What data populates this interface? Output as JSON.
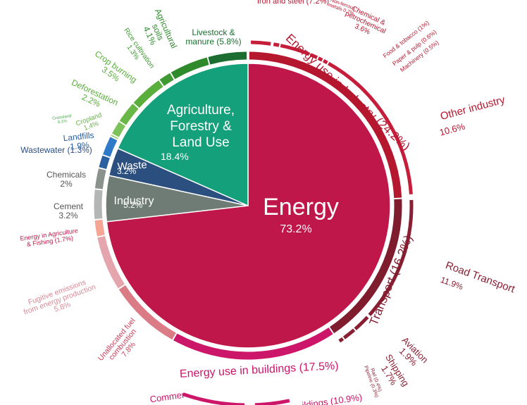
{
  "chart_data": {
    "type": "pie",
    "title": "",
    "sectors": [
      {
        "label": "Energy",
        "value": 73.2,
        "display": "73.2%",
        "color": "#c0174a"
      },
      {
        "label": "Industry",
        "value": 5.2,
        "display": "5.2%",
        "color": "#6f7c76"
      },
      {
        "label": "Waste",
        "value": 3.2,
        "display": "3.2%",
        "color": "#2b4f7e"
      },
      {
        "label": "Agriculture, Forestry & Land Use",
        "value": 18.4,
        "display": "18.4%",
        "color": "#13a07a"
      }
    ],
    "energy_subsectors": [
      {
        "label": "Energy use in Industry",
        "value": 24.2,
        "display": "(24.2%)",
        "color": "#b5172f"
      },
      {
        "label": "Transport",
        "value": 16.2,
        "display": "(16.2%)",
        "color": "#7f1c2e"
      },
      {
        "label": "Energy use in buildings",
        "value": 17.5,
        "display": "(17.5%)",
        "color": "#cc1669"
      },
      {
        "label": "Unallocated fuel combustion",
        "value": 7.8,
        "display": "7.8%",
        "color": "#db7b85"
      },
      {
        "label": "Fugitive emissions from energy production",
        "value": 5.8,
        "display": "5.8%",
        "color": "#e4a5ad"
      },
      {
        "label": "Energy in Agriculture & Fishing",
        "value": 1.7,
        "display": "(1.7%)",
        "color": "#f4a593"
      }
    ],
    "detail_labels": [
      {
        "label": "Iron and steel",
        "value": 7.2,
        "display": "(7.2%)"
      },
      {
        "label": "Non-ferrous metals",
        "value": 0.7,
        "display": "0.7%"
      },
      {
        "label": "Chemical & petrochemical",
        "value": 3.6,
        "display": "3.6%"
      },
      {
        "label": "Food & tobacco",
        "value": 1,
        "display": "(1%)"
      },
      {
        "label": "Paper & pulp",
        "value": 0.6,
        "display": "(0.6%)"
      },
      {
        "label": "Machinery",
        "value": 0.5,
        "display": "(0.5%)"
      },
      {
        "label": "Other industry",
        "value": 10.6,
        "display": "10.6%"
      },
      {
        "label": "Road Transport",
        "value": 11.9,
        "display": "11.9%"
      },
      {
        "label": "Aviation",
        "value": 1.9,
        "display": "1.9%"
      },
      {
        "label": "Shipping",
        "value": 1.7,
        "display": "1.7%"
      },
      {
        "label": "Rail",
        "value": 0.4,
        "display": "(0.4%)"
      },
      {
        "label": "Pipeline",
        "value": 0.3,
        "display": "(0.3%)"
      },
      {
        "label": "Commercial",
        "value": null,
        "display": "Commer"
      },
      {
        "label": "Residential buildings",
        "value": 10.9,
        "display": "ildings (10.9%)"
      },
      {
        "label": "Cement",
        "value": 3.2,
        "display": "3.2%"
      },
      {
        "label": "Chemicals",
        "value": 2,
        "display": "2%"
      },
      {
        "label": "Wastewater",
        "value": 1.3,
        "display": "(1.3%)"
      },
      {
        "label": "Landfills",
        "value": 1.9,
        "display": "1.9%"
      },
      {
        "label": "Grassland",
        "value": 0.1,
        "display": "0.1%"
      },
      {
        "label": "Cropland",
        "value": 1.4,
        "display": "1.4%"
      },
      {
        "label": "Deforestation",
        "value": 2.2,
        "display": "2.2%"
      },
      {
        "label": "Crop burning",
        "value": 3.5,
        "display": "3.5%"
      },
      {
        "label": "Rice cultivation",
        "value": 1.3,
        "display": "1.3%"
      },
      {
        "label": "Agricultural soils",
        "value": 4.1,
        "display": "4.1%"
      },
      {
        "label": "Livestock & manure",
        "value": 5.8,
        "display": "(5.8%)"
      }
    ]
  }
}
